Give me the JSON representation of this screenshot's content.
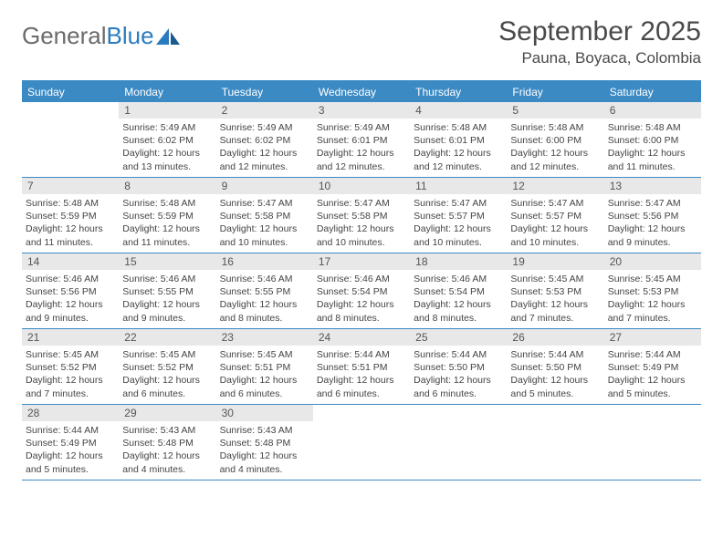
{
  "logo": {
    "text_general": "General",
    "text_blue": "Blue"
  },
  "title": "September 2025",
  "location": "Pauna, Boyaca, Colombia",
  "colors": {
    "header_bg": "#3b8ac4",
    "header_text": "#ffffff",
    "daynum_bg": "#e8e8e8",
    "rule": "#3b8ac4",
    "title_color": "#4a4a4a",
    "logo_gray": "#6b6b6b",
    "logo_blue": "#2b7bbf"
  },
  "day_names": [
    "Sunday",
    "Monday",
    "Tuesday",
    "Wednesday",
    "Thursday",
    "Friday",
    "Saturday"
  ],
  "weeks": [
    [
      {
        "empty": true
      },
      {
        "n": "1",
        "sunrise": "5:49 AM",
        "sunset": "6:02 PM",
        "daylight": "12 hours and 13 minutes."
      },
      {
        "n": "2",
        "sunrise": "5:49 AM",
        "sunset": "6:02 PM",
        "daylight": "12 hours and 12 minutes."
      },
      {
        "n": "3",
        "sunrise": "5:49 AM",
        "sunset": "6:01 PM",
        "daylight": "12 hours and 12 minutes."
      },
      {
        "n": "4",
        "sunrise": "5:48 AM",
        "sunset": "6:01 PM",
        "daylight": "12 hours and 12 minutes."
      },
      {
        "n": "5",
        "sunrise": "5:48 AM",
        "sunset": "6:00 PM",
        "daylight": "12 hours and 12 minutes."
      },
      {
        "n": "6",
        "sunrise": "5:48 AM",
        "sunset": "6:00 PM",
        "daylight": "12 hours and 11 minutes."
      }
    ],
    [
      {
        "n": "7",
        "sunrise": "5:48 AM",
        "sunset": "5:59 PM",
        "daylight": "12 hours and 11 minutes."
      },
      {
        "n": "8",
        "sunrise": "5:48 AM",
        "sunset": "5:59 PM",
        "daylight": "12 hours and 11 minutes."
      },
      {
        "n": "9",
        "sunrise": "5:47 AM",
        "sunset": "5:58 PM",
        "daylight": "12 hours and 10 minutes."
      },
      {
        "n": "10",
        "sunrise": "5:47 AM",
        "sunset": "5:58 PM",
        "daylight": "12 hours and 10 minutes."
      },
      {
        "n": "11",
        "sunrise": "5:47 AM",
        "sunset": "5:57 PM",
        "daylight": "12 hours and 10 minutes."
      },
      {
        "n": "12",
        "sunrise": "5:47 AM",
        "sunset": "5:57 PM",
        "daylight": "12 hours and 10 minutes."
      },
      {
        "n": "13",
        "sunrise": "5:47 AM",
        "sunset": "5:56 PM",
        "daylight": "12 hours and 9 minutes."
      }
    ],
    [
      {
        "n": "14",
        "sunrise": "5:46 AM",
        "sunset": "5:56 PM",
        "daylight": "12 hours and 9 minutes."
      },
      {
        "n": "15",
        "sunrise": "5:46 AM",
        "sunset": "5:55 PM",
        "daylight": "12 hours and 9 minutes."
      },
      {
        "n": "16",
        "sunrise": "5:46 AM",
        "sunset": "5:55 PM",
        "daylight": "12 hours and 8 minutes."
      },
      {
        "n": "17",
        "sunrise": "5:46 AM",
        "sunset": "5:54 PM",
        "daylight": "12 hours and 8 minutes."
      },
      {
        "n": "18",
        "sunrise": "5:46 AM",
        "sunset": "5:54 PM",
        "daylight": "12 hours and 8 minutes."
      },
      {
        "n": "19",
        "sunrise": "5:45 AM",
        "sunset": "5:53 PM",
        "daylight": "12 hours and 7 minutes."
      },
      {
        "n": "20",
        "sunrise": "5:45 AM",
        "sunset": "5:53 PM",
        "daylight": "12 hours and 7 minutes."
      }
    ],
    [
      {
        "n": "21",
        "sunrise": "5:45 AM",
        "sunset": "5:52 PM",
        "daylight": "12 hours and 7 minutes."
      },
      {
        "n": "22",
        "sunrise": "5:45 AM",
        "sunset": "5:52 PM",
        "daylight": "12 hours and 6 minutes."
      },
      {
        "n": "23",
        "sunrise": "5:45 AM",
        "sunset": "5:51 PM",
        "daylight": "12 hours and 6 minutes."
      },
      {
        "n": "24",
        "sunrise": "5:44 AM",
        "sunset": "5:51 PM",
        "daylight": "12 hours and 6 minutes."
      },
      {
        "n": "25",
        "sunrise": "5:44 AM",
        "sunset": "5:50 PM",
        "daylight": "12 hours and 6 minutes."
      },
      {
        "n": "26",
        "sunrise": "5:44 AM",
        "sunset": "5:50 PM",
        "daylight": "12 hours and 5 minutes."
      },
      {
        "n": "27",
        "sunrise": "5:44 AM",
        "sunset": "5:49 PM",
        "daylight": "12 hours and 5 minutes."
      }
    ],
    [
      {
        "n": "28",
        "sunrise": "5:44 AM",
        "sunset": "5:49 PM",
        "daylight": "12 hours and 5 minutes."
      },
      {
        "n": "29",
        "sunrise": "5:43 AM",
        "sunset": "5:48 PM",
        "daylight": "12 hours and 4 minutes."
      },
      {
        "n": "30",
        "sunrise": "5:43 AM",
        "sunset": "5:48 PM",
        "daylight": "12 hours and 4 minutes."
      },
      {
        "empty": true
      },
      {
        "empty": true
      },
      {
        "empty": true
      },
      {
        "empty": true
      }
    ]
  ],
  "labels": {
    "sunrise": "Sunrise:",
    "sunset": "Sunset:",
    "daylight": "Daylight:"
  }
}
